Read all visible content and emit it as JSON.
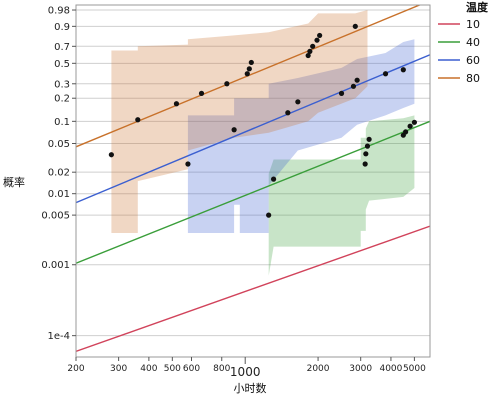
{
  "chart_data": {
    "type": "scatter",
    "title": "",
    "xlabel": "小时数",
    "ylabel": "概率",
    "x_scale": "log",
    "y_scale": "weibull-probability",
    "xlim": [
      200,
      5800
    ],
    "ylim": [
      5e-05,
      0.99
    ],
    "x_ticks": [
      {
        "value": 200,
        "label": "200"
      },
      {
        "value": 300,
        "label": "300"
      },
      {
        "value": 400,
        "label": "400"
      },
      {
        "value": 500,
        "label": "500"
      },
      {
        "value": 600,
        "label": "600"
      },
      {
        "value": 800,
        "label": "800"
      },
      {
        "value": 1000,
        "label": "1000"
      },
      {
        "value": 2000,
        "label": "2000"
      },
      {
        "value": 3000,
        "label": "3000"
      },
      {
        "value": 4000,
        "label": "4000"
      },
      {
        "value": 5000,
        "label": "5000"
      }
    ],
    "x_major_ticks": [
      1000
    ],
    "y_ticks": [
      {
        "value": 0.98,
        "label": "0.98"
      },
      {
        "value": 0.9,
        "label": "0.9"
      },
      {
        "value": 0.7,
        "label": "0.7"
      },
      {
        "value": 0.5,
        "label": "0.5"
      },
      {
        "value": 0.3,
        "label": "0.3"
      },
      {
        "value": 0.2,
        "label": "0.2"
      },
      {
        "value": 0.1,
        "label": "0.1"
      },
      {
        "value": 0.05,
        "label": "0.05"
      },
      {
        "value": 0.02,
        "label": "0.02"
      },
      {
        "value": 0.01,
        "label": "0.01"
      },
      {
        "value": 0.005,
        "label": "0.005"
      },
      {
        "value": 0.001,
        "label": "0.001"
      },
      {
        "value": 0.0001,
        "label": "1e-4"
      }
    ],
    "grid": true,
    "legend": {
      "title": "温度",
      "placement": "right"
    },
    "series": [
      {
        "name": "10",
        "color": "#d1435b",
        "fit_line": [
          [
            200,
            6e-05
          ],
          [
            5800,
            0.0035
          ]
        ],
        "points": [],
        "band": []
      },
      {
        "name": "40",
        "color": "#3a9e3a",
        "fit_line": [
          [
            200,
            0.00105
          ],
          [
            5800,
            0.1
          ]
        ],
        "points": [
          [
            1250,
            0.005
          ],
          [
            1310,
            0.016
          ],
          [
            3130,
            0.026
          ],
          [
            3150,
            0.036
          ],
          [
            3200,
            0.046
          ],
          [
            3250,
            0.057
          ],
          [
            4500,
            0.065
          ],
          [
            4600,
            0.072
          ],
          [
            4800,
            0.086
          ],
          [
            5000,
            0.097
          ]
        ],
        "band": [
          [
            1250,
            0.0007,
            0.019
          ],
          [
            1310,
            0.0018,
            0.03
          ],
          [
            3000,
            0.0018,
            0.03
          ],
          [
            3000,
            0.003,
            0.06
          ],
          [
            3150,
            0.003,
            0.06
          ],
          [
            3150,
            0.006,
            0.08
          ],
          [
            3250,
            0.008,
            0.1
          ],
          [
            4500,
            0.009,
            0.11
          ],
          [
            5000,
            0.012,
            0.12
          ]
        ]
      },
      {
        "name": "60",
        "color": "#3b5fd0",
        "fit_line": [
          [
            200,
            0.0075
          ],
          [
            5800,
            0.6
          ]
        ],
        "points": [
          [
            580,
            0.026
          ],
          [
            900,
            0.077
          ],
          [
            1500,
            0.13
          ],
          [
            1650,
            0.18
          ],
          [
            2500,
            0.23
          ],
          [
            2800,
            0.28
          ],
          [
            2900,
            0.33
          ],
          [
            3800,
            0.39
          ],
          [
            4500,
            0.43
          ]
        ],
        "band": [
          [
            580,
            0.0028,
            0.12
          ],
          [
            900,
            0.0028,
            0.12
          ],
          [
            900,
            0.007,
            0.2
          ],
          [
            950,
            0.007,
            0.2
          ],
          [
            950,
            0.0028,
            0.2
          ],
          [
            1250,
            0.0028,
            0.2
          ],
          [
            1250,
            0.013,
            0.3
          ],
          [
            1650,
            0.04,
            0.35
          ],
          [
            2500,
            0.06,
            0.45
          ],
          [
            2900,
            0.09,
            0.55
          ],
          [
            3800,
            0.12,
            0.62
          ],
          [
            4500,
            0.15,
            0.75
          ],
          [
            5000,
            0.17,
            0.78
          ]
        ]
      },
      {
        "name": "80",
        "color": "#c8712a",
        "fit_line": [
          [
            200,
            0.045
          ],
          [
            5800,
            0.995
          ]
        ],
        "points": [
          [
            280,
            0.035
          ],
          [
            360,
            0.105
          ],
          [
            520,
            0.17
          ],
          [
            660,
            0.23
          ],
          [
            840,
            0.3
          ],
          [
            1020,
            0.39
          ],
          [
            1040,
            0.44
          ],
          [
            1060,
            0.51
          ],
          [
            1820,
            0.59
          ],
          [
            1850,
            0.64
          ],
          [
            1900,
            0.7
          ],
          [
            1980,
            0.77
          ],
          [
            2030,
            0.82
          ],
          [
            2850,
            0.9
          ]
        ],
        "band": [
          [
            280,
            0.0028,
            0.65
          ],
          [
            360,
            0.0028,
            0.65
          ],
          [
            360,
            0.015,
            0.7
          ],
          [
            580,
            0.022,
            0.72
          ],
          [
            580,
            0.04,
            0.78
          ],
          [
            900,
            0.06,
            0.82
          ],
          [
            1250,
            0.07,
            0.85
          ],
          [
            1820,
            0.1,
            0.92
          ],
          [
            2000,
            0.13,
            0.97
          ],
          [
            2850,
            0.2,
            0.97
          ],
          [
            3200,
            0.28,
            0.98
          ]
        ]
      }
    ]
  }
}
